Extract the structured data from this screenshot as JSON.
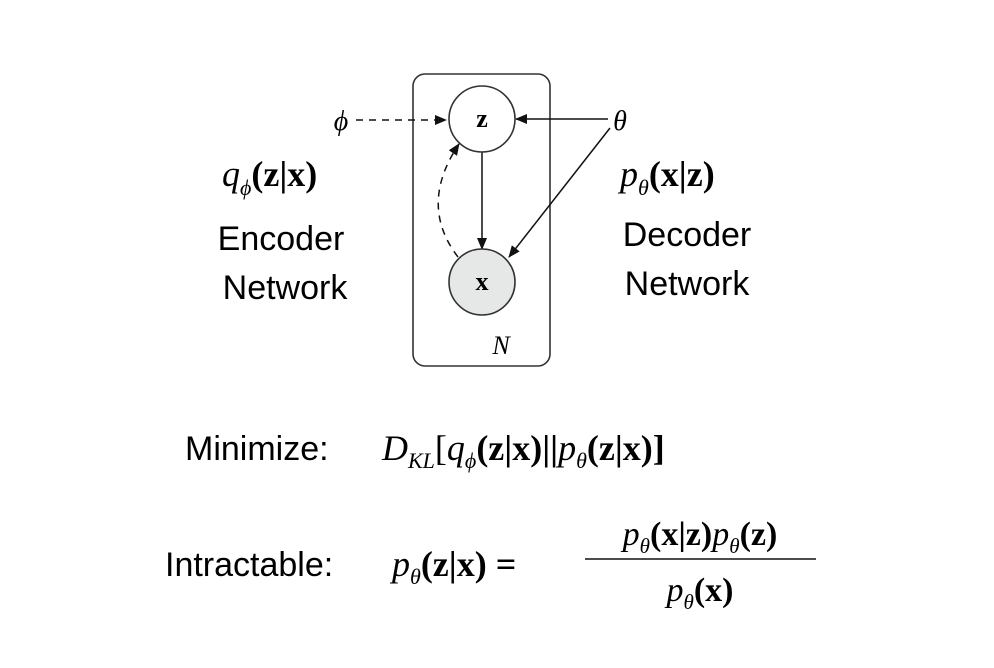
{
  "plate": {
    "label": "N"
  },
  "nodes": {
    "z": {
      "label": "z",
      "fill": "#ffffff"
    },
    "x": {
      "label": "x",
      "fill": "#e6e8e8"
    }
  },
  "params": {
    "phi": "ϕ",
    "theta": "θ"
  },
  "encoder": {
    "formula": {
      "q": "q",
      "sub": "ϕ",
      "args": "(z|x)"
    },
    "line1": "Encoder",
    "line2": "Network"
  },
  "decoder": {
    "formula": {
      "p": "p",
      "sub": "θ",
      "args": "(x|z)"
    },
    "line1": "Decoder",
    "line2": "Network"
  },
  "minimize": {
    "label": "Minimize:",
    "D": "D",
    "sub": "KL",
    "open": "[",
    "q": "q",
    "q_sub": "ϕ",
    "args1": "(z|x)||",
    "p": "p",
    "p_sub": "θ",
    "args2": "(z|x)]"
  },
  "intractable": {
    "label": "Intractable:",
    "lhs_p": "p",
    "lhs_sub": "θ",
    "lhs_args": "(z|x) =",
    "num_p1": "p",
    "num_sub1": "θ",
    "num_args1": "(x|z)",
    "num_p2": "p",
    "num_sub2": "θ",
    "num_args2": "(z)",
    "den_p": "p",
    "den_sub": "θ",
    "den_args": "(x)"
  }
}
